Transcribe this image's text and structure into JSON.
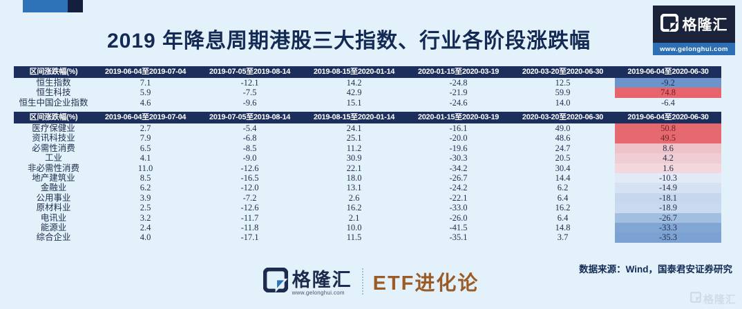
{
  "page": {
    "title": "2019 年降息周期港股三大指数、行业各阶段涨跌幅",
    "source_note": "数据来源：Wind，国泰君安证券研究"
  },
  "logo_badge": {
    "brand": "格隆汇",
    "url": "www.gelonghui.com"
  },
  "footer": {
    "brand": "格隆汇",
    "brand_url": "www.gelonghui.com",
    "channel": "ETF进化论",
    "watermark": "格隆汇"
  },
  "colors": {
    "page_bg": "#e3f1fb",
    "header_bg": "#1c2f5c",
    "title_text": "#132a54",
    "deco_blue": "#2e72b8",
    "deco_navy": "#141f3e",
    "channel_bronze": "#9a5b26",
    "heat_red_strong": "#e5696f",
    "heat_blue_strong": "#6d94ca"
  },
  "chart_data": [
    {
      "type": "table",
      "title": "港股三大指数各阶段涨跌幅",
      "header": [
        "区间涨跌幅(%)",
        "2019-06-04至2019-07-04",
        "2019-07-05至2019-08-14",
        "2019-08-15至2020-01-14",
        "2020-01-15至2020-03-19",
        "2020-03-20至2020-06-30",
        "2019-06-04至2020-06-30"
      ],
      "rows": [
        {
          "label": "恒生指数",
          "values": [
            "7.1",
            "-12.1",
            "14.2",
            "-24.8",
            "12.5",
            "-9.2"
          ],
          "total_bg": "#6d94ca",
          "total_fg": "#1d2a49"
        },
        {
          "label": "恒生科技",
          "values": [
            "5.9",
            "-7.5",
            "42.9",
            "-21.9",
            "59.9",
            "74.8"
          ],
          "total_bg": "#e7646c",
          "total_fg": "#6f2125"
        },
        {
          "label": "恒生中国企业指数",
          "values": [
            "4.6",
            "-9.6",
            "15.1",
            "-24.6",
            "14.0",
            "-6.4"
          ],
          "total_bg": "",
          "total_fg": ""
        }
      ]
    },
    {
      "type": "table",
      "title": "港股行业各阶段涨跌幅",
      "header": [
        "区间涨跌幅(%)",
        "2019-06-04至2019-07-04",
        "2019-07-05至2019-08-14",
        "2019-08-15至2020-01-14",
        "2020-01-15至2020-03-19",
        "2020-03-20至2020-06-30",
        "2019-06-04至2020-06-30"
      ],
      "rows": [
        {
          "label": "医疗保健业",
          "values": [
            "2.7",
            "-5.4",
            "24.1",
            "-16.1",
            "49.0",
            "50.8"
          ],
          "total_bg": "#e5696f",
          "total_fg": "#6f2125"
        },
        {
          "label": "资讯科技业",
          "values": [
            "7.9",
            "-6.8",
            "25.1",
            "-20.0",
            "48.6",
            "49.5"
          ],
          "total_bg": "#e5696f",
          "total_fg": "#6f2125"
        },
        {
          "label": "必需性消费",
          "values": [
            "6.5",
            "-8.5",
            "11.2",
            "-19.6",
            "24.7",
            "8.6"
          ],
          "total_bg": "#eec2c8",
          "total_fg": "#222f4e"
        },
        {
          "label": "工业",
          "values": [
            "4.1",
            "-9.0",
            "30.9",
            "-30.3",
            "20.5",
            "4.2"
          ],
          "total_bg": "#f0cdd2",
          "total_fg": "#222f4e"
        },
        {
          "label": "非必需性消费",
          "values": [
            "11.0",
            "-12.6",
            "22.1",
            "-34.2",
            "30.4",
            "1.6"
          ],
          "total_bg": "#f2d8dc",
          "total_fg": "#222f4e"
        },
        {
          "label": "地产建筑业",
          "values": [
            "8.5",
            "-16.5",
            "18.0",
            "-26.7",
            "14.4",
            "-10.3"
          ],
          "total_bg": "#e1eaf6",
          "total_fg": "#222f4e"
        },
        {
          "label": "金融业",
          "values": [
            "6.2",
            "-12.0",
            "13.1",
            "-24.2",
            "6.2",
            "-14.9"
          ],
          "total_bg": "#d6e2f1",
          "total_fg": "#222f4e"
        },
        {
          "label": "公用事业",
          "values": [
            "3.9",
            "-7.2",
            "2.6",
            "-22.1",
            "6.4",
            "-18.1"
          ],
          "total_bg": "#c6d8ed",
          "total_fg": "#222f4e"
        },
        {
          "label": "原材料业",
          "values": [
            "2.5",
            "-12.6",
            "16.2",
            "-33.0",
            "16.2",
            "-18.9"
          ],
          "total_bg": "#c9daee",
          "total_fg": "#222f4e"
        },
        {
          "label": "电讯业",
          "values": [
            "3.2",
            "-11.7",
            "2.1",
            "-26.0",
            "6.4",
            "-26.7"
          ],
          "total_bg": "#a2bfdf",
          "total_fg": "#222f4e"
        },
        {
          "label": "能源业",
          "values": [
            "2.4",
            "-11.8",
            "10.0",
            "-41.5",
            "14.8",
            "-33.3"
          ],
          "total_bg": "#82a6d4",
          "total_fg": "#222f4e"
        },
        {
          "label": "综合企业",
          "values": [
            "4.0",
            "-17.1",
            "11.5",
            "-35.1",
            "3.7",
            "-35.3"
          ],
          "total_bg": "#7ba2d2",
          "total_fg": "#222f4e"
        }
      ]
    }
  ]
}
